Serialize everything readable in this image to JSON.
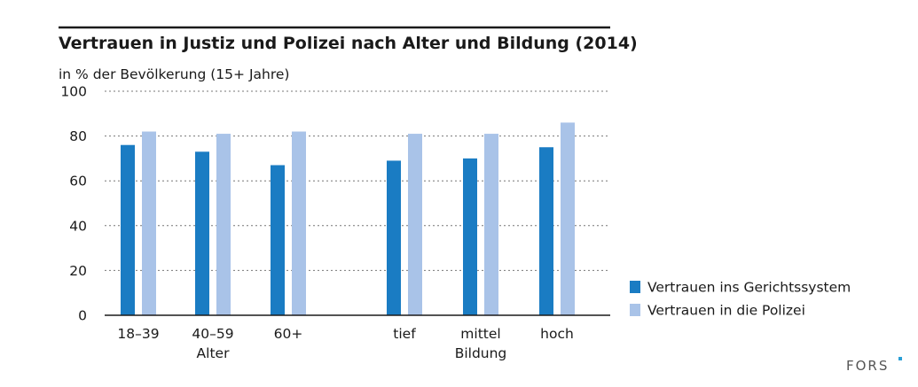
{
  "chart_data": {
    "type": "bar",
    "title": "Vertrauen in Justiz und Polizei nach Alter und Bildung (2014)",
    "subtitle": "in % der Bevölkerung (15+ Jahre)",
    "categories": [
      "18–39",
      "40–59",
      "60+",
      "tief",
      "mittel",
      "hoch"
    ],
    "groups": [
      {
        "label": "Alter",
        "categories": [
          "18–39",
          "40–59",
          "60+"
        ]
      },
      {
        "label": "Bildung",
        "categories": [
          "tief",
          "mittel",
          "hoch"
        ]
      }
    ],
    "series": [
      {
        "name": "Vertrauen ins Gerichtssystem",
        "color": "#1a7cc3",
        "values": [
          76,
          73,
          67,
          69,
          70,
          75
        ]
      },
      {
        "name": "Vertrauen in die Polizei",
        "color": "#a9c3e8",
        "values": [
          82,
          81,
          82,
          81,
          81,
          86
        ]
      }
    ],
    "ylim": [
      0,
      100
    ],
    "yticks": [
      0,
      20,
      40,
      60,
      80,
      100
    ],
    "grid": true,
    "legend_position": "right"
  },
  "branding": {
    "logo_text": "FORS",
    "logo_accent_color": "#2a9fd6"
  }
}
